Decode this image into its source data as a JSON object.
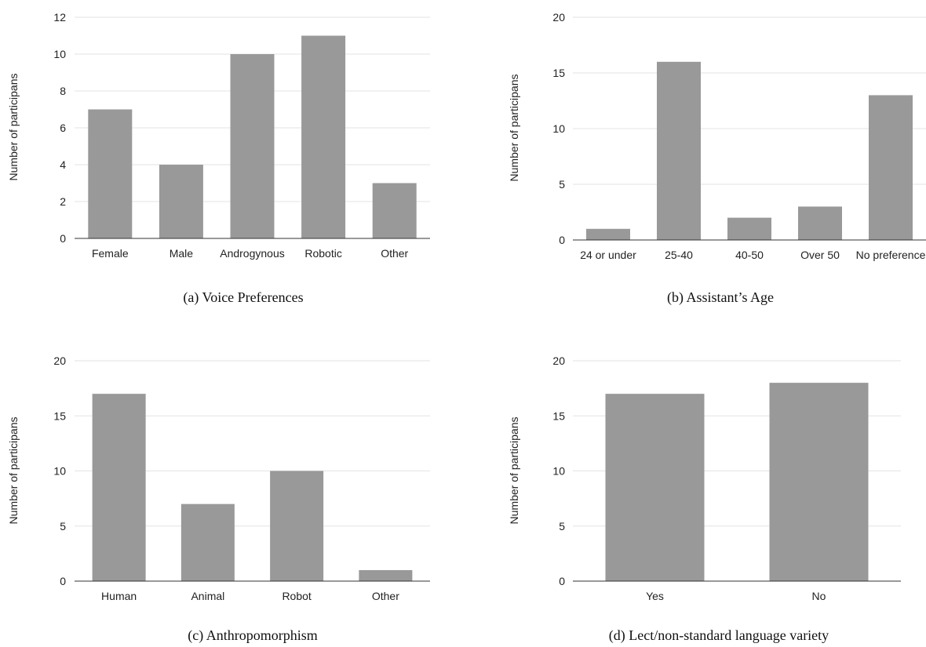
{
  "colors": {
    "bar": "#999999",
    "grid": "#e3e3e3",
    "axis": "#333333"
  },
  "chart_data": [
    {
      "type": "bar",
      "caption": "(a) Voice Preferences",
      "ylabel": "Number of participans",
      "xlabel": "",
      "ylim": [
        0,
        12
      ],
      "yticks": [
        0,
        2,
        4,
        6,
        8,
        10,
        12
      ],
      "grid": true,
      "categories": [
        "Female",
        "Male",
        "Androgynous",
        "Robotic",
        "Other"
      ],
      "values": [
        7,
        4,
        10,
        11,
        3
      ]
    },
    {
      "type": "bar",
      "caption": "(b) Assistant’s Age",
      "ylabel": "Number of participans",
      "xlabel": "",
      "ylim": [
        0,
        20
      ],
      "yticks": [
        0,
        5,
        10,
        15,
        20
      ],
      "grid": true,
      "categories": [
        "24 or under",
        "25-40",
        "40-50",
        "Over 50",
        "No preference"
      ],
      "values": [
        1,
        16,
        2,
        3,
        13
      ]
    },
    {
      "type": "bar",
      "caption": "(c) Anthropomorphism",
      "ylabel": "Number of participans",
      "xlabel": "",
      "ylim": [
        0,
        20
      ],
      "yticks": [
        0,
        5,
        10,
        15,
        20
      ],
      "grid": true,
      "categories": [
        "Human",
        "Animal",
        "Robot",
        "Other"
      ],
      "values": [
        17,
        7,
        10,
        1
      ]
    },
    {
      "type": "bar",
      "caption": "(d) Lect/non-standard language variety",
      "ylabel": "Number of participans",
      "xlabel": "",
      "ylim": [
        0,
        20
      ],
      "yticks": [
        0,
        5,
        10,
        15,
        20
      ],
      "grid": true,
      "categories": [
        "Yes",
        "No"
      ],
      "values": [
        17,
        18
      ]
    }
  ]
}
